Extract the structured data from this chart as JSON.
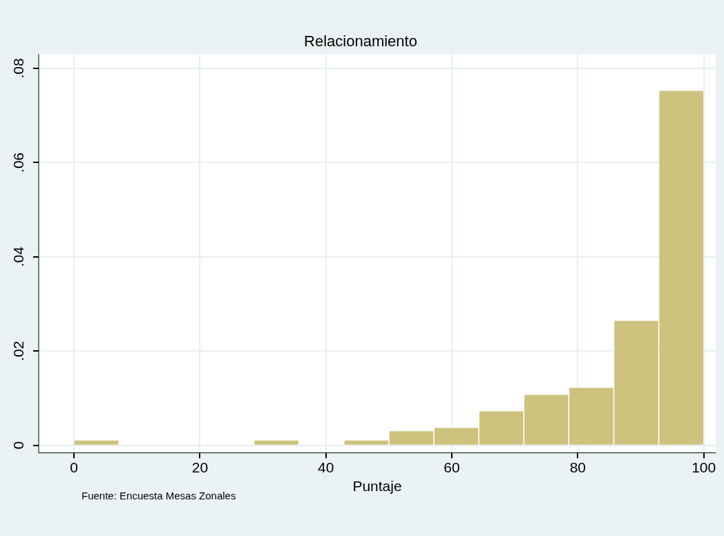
{
  "chart_data": {
    "type": "histogram",
    "title": "Relacionamiento",
    "xlabel": "Puntaje",
    "bins": [
      0,
      7.1429,
      14.2857,
      21.4286,
      28.5714,
      35.7143,
      42.8571,
      50,
      57.1429,
      64.2857,
      71.4286,
      78.5714,
      85.7143,
      92.8571,
      100
    ],
    "values": [
      0.001,
      0,
      0,
      0,
      0.001,
      0,
      0.001,
      0.003,
      0.0037,
      0.0072,
      0.0107,
      0.0122,
      0.0264,
      0.0752
    ],
    "color": "#cdc37e",
    "xlim": [
      -5.6,
      101.9
    ],
    "xticks": [
      0,
      20,
      40,
      60,
      80,
      100
    ],
    "ylim": [
      -0.0016,
      0.083
    ],
    "yticks": [
      0,
      {
        "value": 0.02,
        "label": ".02"
      },
      {
        "value": 0.04,
        "label": ".04"
      },
      {
        "value": 0.06,
        "label": ".06"
      },
      {
        "value": 0.08,
        "label": ".08"
      }
    ],
    "grid": true,
    "annotations": [
      "Fuente: Encuesta Mesas Zonales"
    ]
  }
}
